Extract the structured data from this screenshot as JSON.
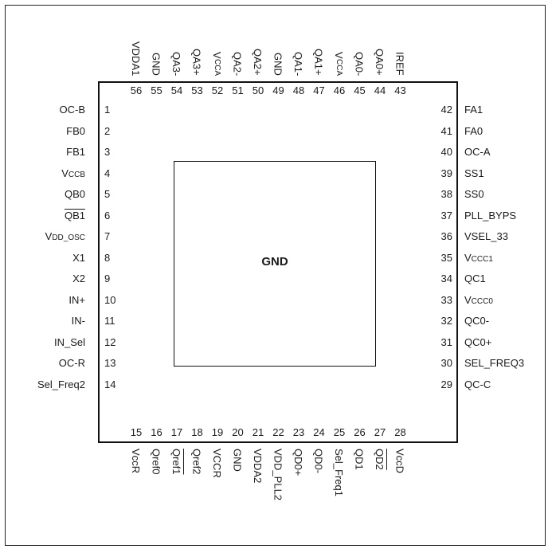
{
  "center_label": "GND",
  "pins": {
    "left": [
      {
        "num": "1",
        "name": "OC-B"
      },
      {
        "num": "2",
        "name": "FB0"
      },
      {
        "num": "3",
        "name": "FB1"
      },
      {
        "num": "4",
        "name": "VCCB",
        "pre": "V",
        "sub": "CCB"
      },
      {
        "num": "5",
        "name": "QB0"
      },
      {
        "num": "6",
        "name": "QB1",
        "overline": true
      },
      {
        "num": "7",
        "name": "VDD_OSC",
        "pre": "V",
        "sub": "DD_OSC"
      },
      {
        "num": "8",
        "name": "X1"
      },
      {
        "num": "9",
        "name": "X2"
      },
      {
        "num": "10",
        "name": "IN+"
      },
      {
        "num": "11",
        "name": "IN-"
      },
      {
        "num": "12",
        "name": "IN_Sel"
      },
      {
        "num": "13",
        "name": "OC-R"
      },
      {
        "num": "14",
        "name": "Sel_Freq2"
      }
    ],
    "right": [
      {
        "num": "42",
        "name": "FA1"
      },
      {
        "num": "41",
        "name": "FA0"
      },
      {
        "num": "40",
        "name": "OC-A"
      },
      {
        "num": "39",
        "name": "SS1"
      },
      {
        "num": "38",
        "name": "SS0"
      },
      {
        "num": "37",
        "name": "PLL_BYPS"
      },
      {
        "num": "36",
        "name": "VSEL_33"
      },
      {
        "num": "35",
        "name": "VCCC1",
        "pre": "V",
        "sub": "CCC1"
      },
      {
        "num": "34",
        "name": "QC1"
      },
      {
        "num": "33",
        "name": "VCCC0",
        "pre": "V",
        "sub": "CCC0"
      },
      {
        "num": "32",
        "name": "QC0-"
      },
      {
        "num": "31",
        "name": "QC0+"
      },
      {
        "num": "30",
        "name": "SEL_FREQ3"
      },
      {
        "num": "29",
        "name": "QC-C"
      }
    ],
    "top": [
      {
        "num": "56",
        "name": "VDDA1"
      },
      {
        "num": "55",
        "name": "GND"
      },
      {
        "num": "54",
        "name": "QA3-"
      },
      {
        "num": "53",
        "name": "QA3+"
      },
      {
        "num": "52",
        "name": "VCCA",
        "pre": "V",
        "sub": "CCA"
      },
      {
        "num": "51",
        "name": "QA2-"
      },
      {
        "num": "50",
        "name": "QA2+"
      },
      {
        "num": "49",
        "name": "GND"
      },
      {
        "num": "48",
        "name": "QA1-"
      },
      {
        "num": "47",
        "name": "QA1+"
      },
      {
        "num": "46",
        "name": "VCCA",
        "pre": "V",
        "sub": "CCA"
      },
      {
        "num": "45",
        "name": "QA0-"
      },
      {
        "num": "44",
        "name": "QA0+"
      },
      {
        "num": "43",
        "name": "IREF"
      }
    ],
    "bottom": [
      {
        "num": "15",
        "name": "VccR"
      },
      {
        "num": "16",
        "name": "Qref0"
      },
      {
        "num": "17",
        "name": "Qref1",
        "overline": true
      },
      {
        "num": "18",
        "name": "Qref2"
      },
      {
        "num": "19",
        "name": "VCCR"
      },
      {
        "num": "20",
        "name": "GND"
      },
      {
        "num": "21",
        "name": "VDDA2"
      },
      {
        "num": "22",
        "name": "VDD_PLL2"
      },
      {
        "num": "23",
        "name": "QD0+"
      },
      {
        "num": "24",
        "name": "QD0-"
      },
      {
        "num": "25",
        "name": "Sel_Freq1"
      },
      {
        "num": "26",
        "name": "QD1"
      },
      {
        "num": "27",
        "name": "QD2",
        "overline": true
      },
      {
        "num": "28",
        "name": "VccD"
      }
    ]
  }
}
